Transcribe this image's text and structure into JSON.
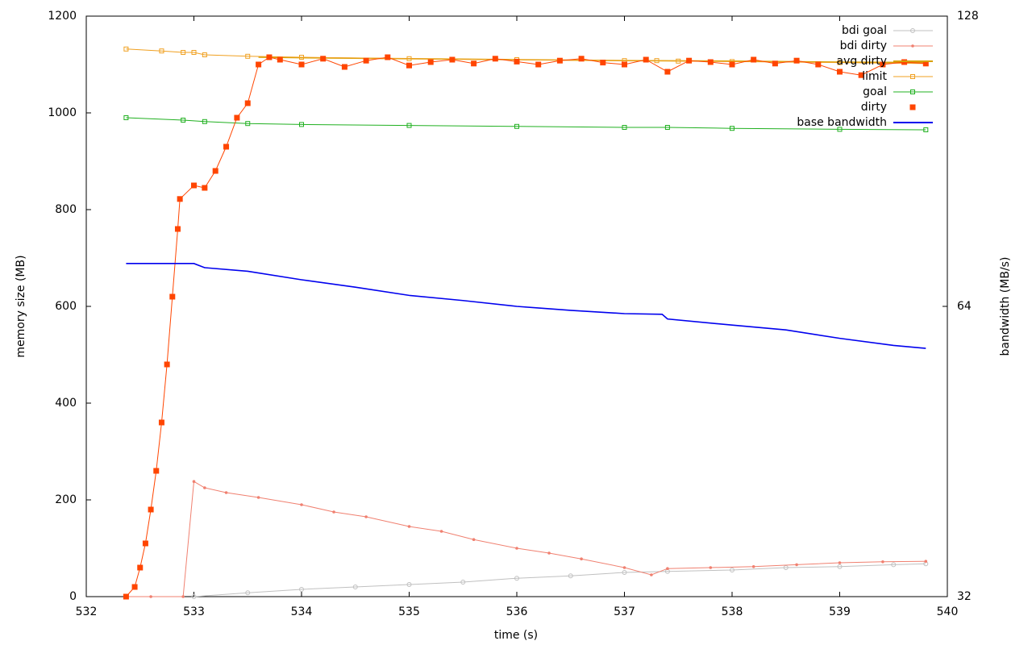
{
  "chart_data": {
    "type": "line",
    "x_label": "time (s)",
    "y_label": "memory size (MB)",
    "y2_label": "bandwidth (MB/s)",
    "xlim": [
      532,
      540
    ],
    "xticks": [
      532,
      533,
      534,
      535,
      536,
      537,
      538,
      539,
      540
    ],
    "ylim": [
      0,
      1200
    ],
    "yticks": [
      0,
      200,
      400,
      600,
      800,
      1000,
      1200
    ],
    "y2lim": [
      32,
      128
    ],
    "y2ticks": [
      32,
      64,
      128
    ],
    "y2_log": true,
    "grid": false,
    "legend": "top-right",
    "series": [
      {
        "name": "bdi goal",
        "color": "#c0c0c0",
        "marker": "circle",
        "x": [
          533,
          533.5,
          534,
          534.5,
          535,
          535.5,
          536,
          536.5,
          537,
          537.4,
          538,
          538.5,
          539,
          539.5,
          539.8
        ],
        "values": [
          0,
          8,
          15,
          20,
          25,
          30,
          38,
          43,
          50,
          52,
          55,
          60,
          62,
          66,
          68
        ]
      },
      {
        "name": "bdi dirty",
        "color": "#f08070",
        "marker": "dot",
        "x": [
          532.37,
          532.6,
          532.9,
          533.0,
          533.1,
          533.3,
          533.6,
          534,
          534.3,
          534.6,
          535,
          535.3,
          535.6,
          536,
          536.3,
          536.6,
          537,
          537.25,
          537.4,
          537.8,
          538.2,
          538.6,
          539,
          539.4,
          539.8
        ],
        "values": [
          0,
          0,
          0,
          238,
          225,
          215,
          205,
          190,
          175,
          165,
          145,
          135,
          118,
          100,
          90,
          78,
          60,
          45,
          58,
          60,
          62,
          66,
          70,
          72,
          73
        ]
      },
      {
        "name": "avg dirty",
        "color": "#d8a000",
        "marker": "none",
        "x": [
          533.6,
          534,
          535,
          536,
          537,
          538,
          539,
          539.8
        ],
        "values": [
          1115,
          1114,
          1112,
          1110,
          1108,
          1107,
          1105,
          1104
        ]
      },
      {
        "name": "limit",
        "color": "#f0a020",
        "marker": "square",
        "x": [
          532.37,
          532.7,
          532.9,
          533,
          533.1,
          533.5,
          534,
          535,
          536,
          537,
          537.3,
          537.5,
          538,
          539,
          539.8
        ],
        "values": [
          1132,
          1128,
          1125,
          1125,
          1120,
          1117,
          1115,
          1112,
          1110,
          1108,
          1108,
          1107,
          1106,
          1104,
          1102
        ]
      },
      {
        "name": "goal",
        "color": "#20b020",
        "marker": "square",
        "x": [
          532.37,
          532.9,
          533.1,
          533.5,
          534,
          535,
          536,
          537,
          537.4,
          538,
          539,
          539.8
        ],
        "values": [
          990,
          985,
          982,
          978,
          976,
          974,
          972,
          970,
          970,
          968,
          966,
          965
        ]
      },
      {
        "name": "dirty",
        "color": "#ff4500",
        "marker": "filled-square",
        "x": [
          532.37,
          532.45,
          532.5,
          532.55,
          532.6,
          532.65,
          532.7,
          532.75,
          532.8,
          532.85,
          532.87,
          533,
          533.1,
          533.2,
          533.3,
          533.4,
          533.5,
          533.6,
          533.7,
          533.8,
          534.0,
          534.2,
          534.4,
          534.6,
          534.8,
          535.0,
          535.2,
          535.4,
          535.6,
          535.8,
          536.0,
          536.2,
          536.4,
          536.6,
          536.8,
          537.0,
          537.2,
          537.4,
          537.6,
          537.8,
          538.0,
          538.2,
          538.4,
          538.6,
          538.8,
          539.0,
          539.2,
          539.4,
          539.6,
          539.8
        ],
        "values": [
          0,
          20,
          60,
          110,
          180,
          260,
          360,
          480,
          620,
          760,
          822,
          850,
          845,
          880,
          930,
          990,
          1020,
          1100,
          1115,
          1110,
          1100,
          1112,
          1095,
          1108,
          1115,
          1098,
          1105,
          1110,
          1102,
          1112,
          1106,
          1100,
          1108,
          1112,
          1104,
          1100,
          1110,
          1085,
          1108,
          1105,
          1100,
          1110,
          1102,
          1108,
          1100,
          1085,
          1078,
          1100,
          1105,
          1102
        ]
      },
      {
        "name": "base bandwidth",
        "color": "#0000ee",
        "marker": "none",
        "axis": "y2",
        "x": [
          532.37,
          532.9,
          533.0,
          533.1,
          533.5,
          534,
          534.5,
          535,
          535.5,
          536,
          536.5,
          537,
          537.35,
          537.4,
          538,
          538.5,
          539,
          539.5,
          539.8
        ],
        "values": [
          70.9,
          70.9,
          70.9,
          70.2,
          69.6,
          68.2,
          67.0,
          65.7,
          64.9,
          64.0,
          63.4,
          62.9,
          62.8,
          62.1,
          61.2,
          60.5,
          59.3,
          58.3,
          57.9
        ]
      }
    ]
  }
}
